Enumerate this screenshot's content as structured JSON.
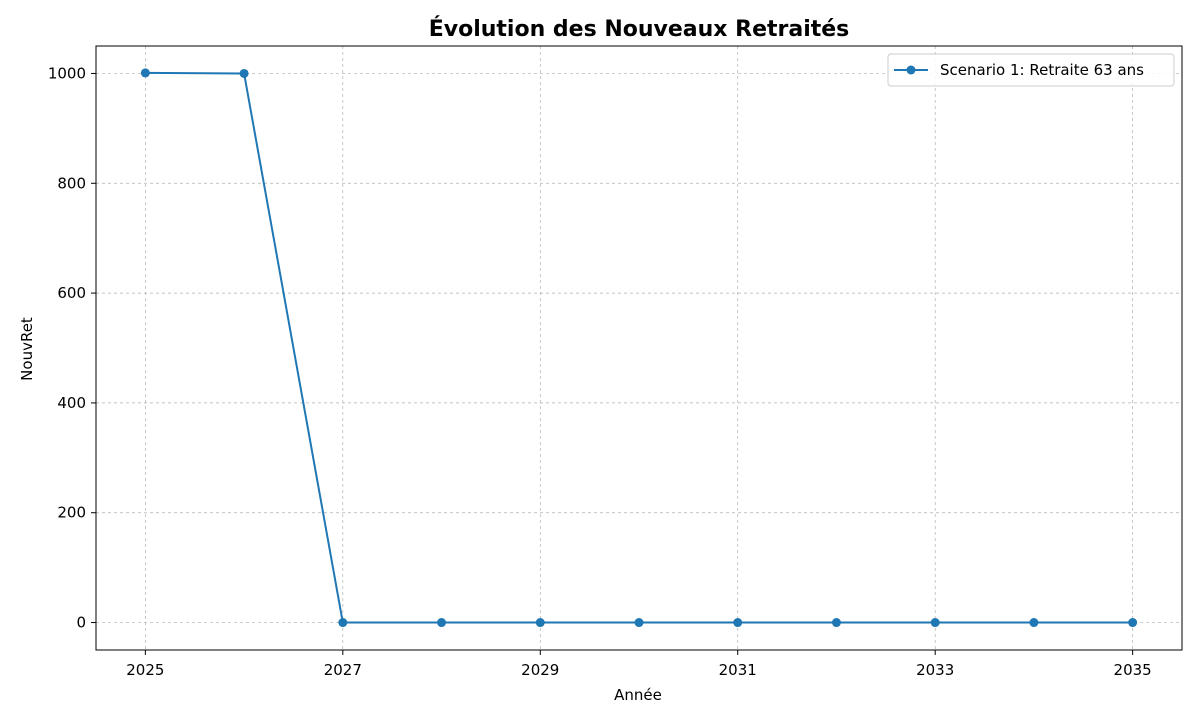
{
  "chart_data": {
    "type": "line",
    "title": "Évolution des Nouveaux Retraités",
    "xlabel": "Année",
    "ylabel": "NouvRet",
    "x": [
      2025,
      2026,
      2027,
      2028,
      2029,
      2030,
      2031,
      2032,
      2033,
      2034,
      2035
    ],
    "series": [
      {
        "name": "Scenario 1: Retraite 63 ans",
        "color": "#1f77b4",
        "marker": "circle",
        "values": [
          1001,
          1000,
          0,
          0,
          0,
          0,
          0,
          0,
          0,
          0,
          0
        ]
      }
    ],
    "xlim": [
      2024.5,
      2035.5
    ],
    "ylim": [
      -50,
      1050
    ],
    "xticks": [
      2025,
      2027,
      2029,
      2031,
      2033,
      2035
    ],
    "xtick_labels": [
      "2025",
      "2027",
      "2029",
      "2031",
      "2033",
      "2035"
    ],
    "yticks": [
      0,
      200,
      400,
      600,
      800,
      1000
    ],
    "ytick_labels": [
      "0",
      "200",
      "400",
      "600",
      "800",
      "1000"
    ],
    "grid": true,
    "legend_position": "top-right"
  }
}
